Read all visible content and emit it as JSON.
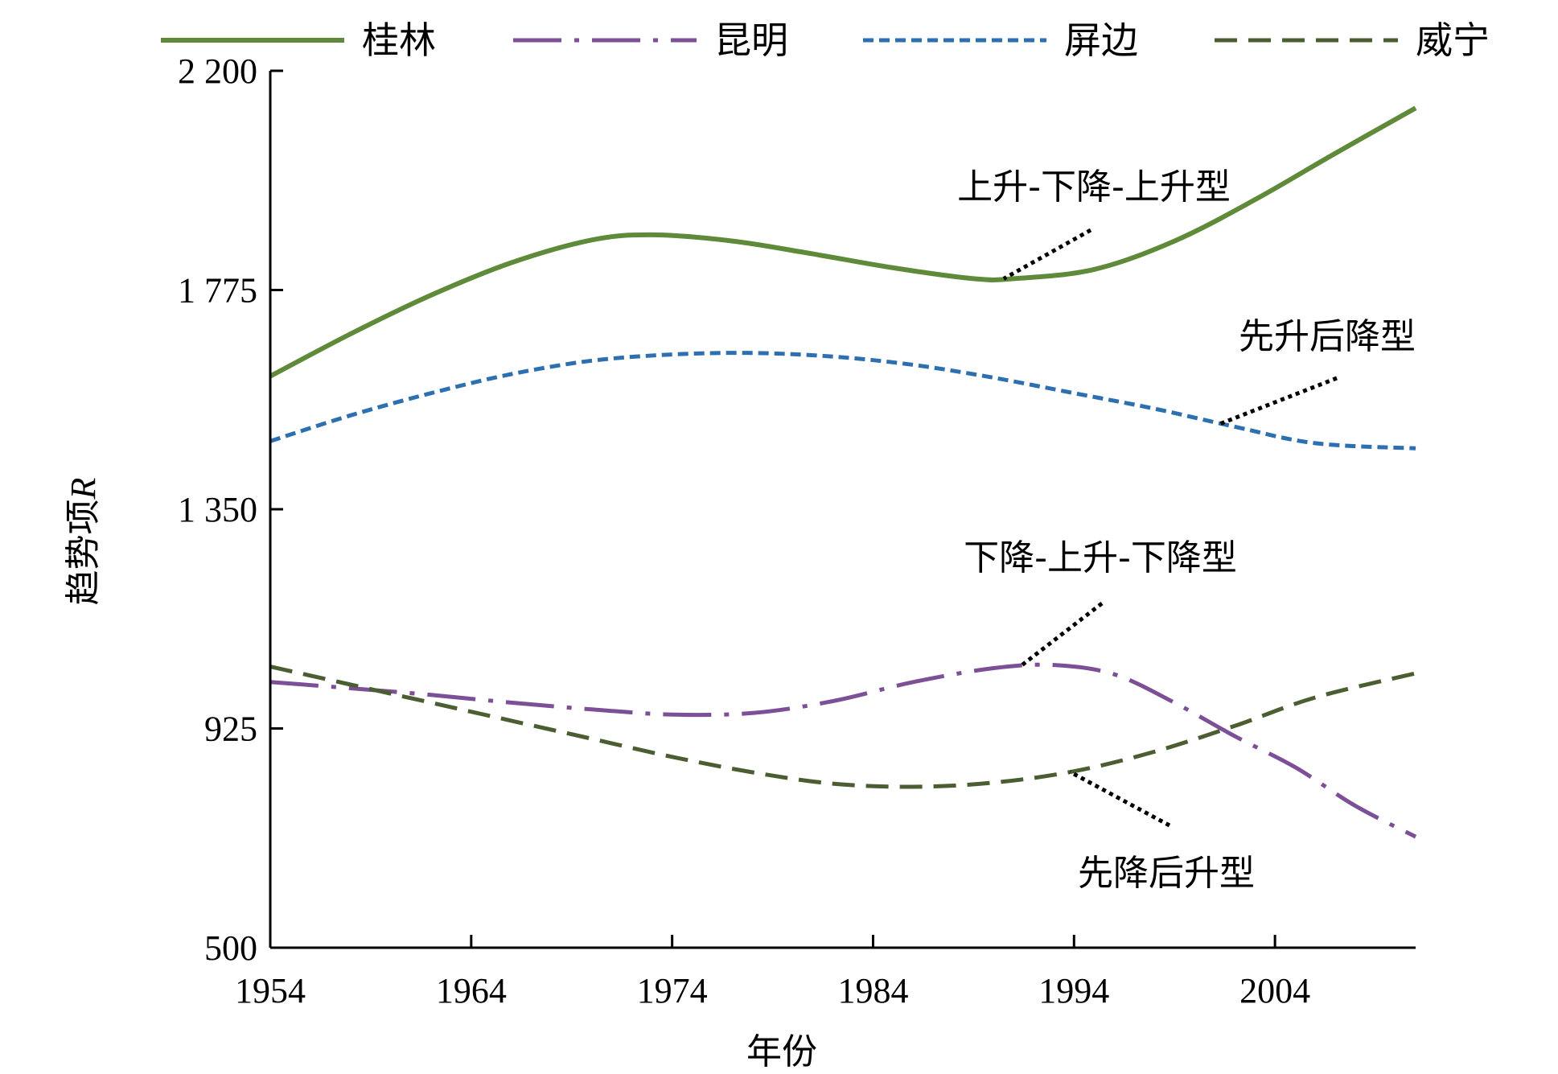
{
  "chart_data": {
    "type": "line",
    "title": "",
    "xlabel": "年份",
    "ylabel": "趋势项",
    "ylabel_italic": "R",
    "xlim": [
      1954,
      2011
    ],
    "ylim": [
      500,
      2200
    ],
    "xticks": [
      1954,
      1964,
      1974,
      1984,
      1994,
      2004
    ],
    "xtick_labels": [
      "1954",
      "1964",
      "1974",
      "1984",
      "1994",
      "2004"
    ],
    "yticks": [
      500,
      925,
      1350,
      1775,
      2200
    ],
    "ytick_labels": [
      "500",
      "925",
      "1 350",
      "1 775",
      "2 200"
    ],
    "legend_position": "top",
    "series": [
      {
        "name": "桂林",
        "style": "solid",
        "color": "#5f8a3a",
        "x": [
          1954,
          1958,
          1962,
          1966,
          1970,
          1973,
          1977,
          1981,
          1985,
          1989,
          1991,
          1995,
          1999,
          2003,
          2007,
          2011
        ],
        "y": [
          1608,
          1690,
          1765,
          1828,
          1872,
          1882,
          1870,
          1845,
          1818,
          1797,
          1797,
          1815,
          1870,
          1950,
          2040,
          2128
        ]
      },
      {
        "name": "昆明",
        "style": "longdash-dot",
        "color": "#7c4f96",
        "x": [
          1954,
          1958,
          1962,
          1966,
          1970,
          1974,
          1978,
          1982,
          1986,
          1990,
          1993,
          1996,
          1999,
          2002,
          2005,
          2008,
          2011
        ],
        "y": [
          1015,
          1003,
          990,
          975,
          962,
          952,
          955,
          978,
          1015,
          1042,
          1048,
          1030,
          975,
          910,
          850,
          775,
          715
        ]
      },
      {
        "name": "屏边",
        "style": "dotted",
        "color": "#2e6fb0",
        "x": [
          1954,
          1958,
          1962,
          1966,
          1970,
          1974,
          1978,
          1982,
          1986,
          1990,
          1994,
          1998,
          2002,
          2006,
          2011
        ],
        "y": [
          1482,
          1532,
          1575,
          1612,
          1638,
          1650,
          1653,
          1646,
          1630,
          1605,
          1575,
          1545,
          1510,
          1478,
          1468
        ]
      },
      {
        "name": "威宁",
        "style": "dashed",
        "color": "#4a5e32",
        "x": [
          1954,
          1958,
          1962,
          1966,
          1970,
          1974,
          1978,
          1982,
          1986,
          1990,
          1994,
          1998,
          2002,
          2006,
          2011
        ],
        "y": [
          1045,
          1010,
          975,
          940,
          905,
          870,
          840,
          818,
          812,
          820,
          842,
          880,
          930,
          985,
          1032
        ]
      }
    ],
    "annotations": [
      {
        "text": "上升-下降-上升型",
        "series": "桂林"
      },
      {
        "text": "先升后降型",
        "series": "屏边"
      },
      {
        "text": "下降-上升-下降型",
        "series": "昆明"
      },
      {
        "text": "先降后升型",
        "series": "威宁"
      }
    ]
  }
}
